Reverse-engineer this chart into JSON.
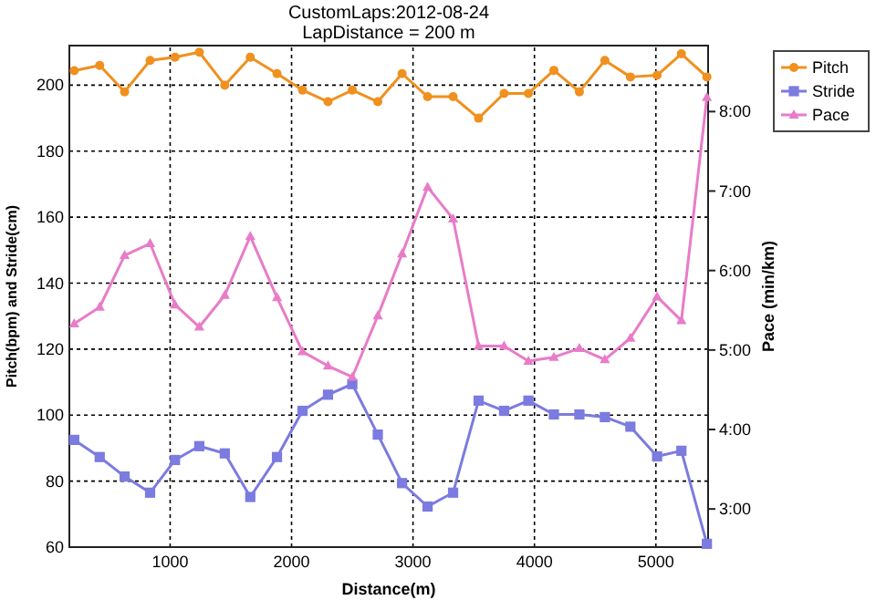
{
  "chart_data": {
    "type": "line",
    "title": "CustomLaps:2012-08-24",
    "subtitle": "LapDistance = 200 m",
    "xlabel": "Distance(m)",
    "ylabel": "Pitch(bpm) and Stride(cm)",
    "y2label": "Pace (min/km)",
    "x": [
      210,
      420,
      625,
      835,
      1040,
      1240,
      1450,
      1660,
      1880,
      2090,
      2300,
      2500,
      2710,
      2910,
      3120,
      3330,
      3540,
      3750,
      3950,
      4160,
      4370,
      4580,
      4790,
      5010,
      5210,
      5420
    ],
    "xlim": [
      170,
      5430
    ],
    "xticks": [
      1000,
      2000,
      3000,
      4000,
      5000
    ],
    "ylim": [
      60,
      212
    ],
    "yticks": [
      60,
      80,
      100,
      120,
      140,
      160,
      180,
      200
    ],
    "y2lim": [
      2.52,
      8.83
    ],
    "y2ticks": [
      {
        "value": 3,
        "label": "3:00"
      },
      {
        "value": 4,
        "label": "4:00"
      },
      {
        "value": 5,
        "label": "5:00"
      },
      {
        "value": 6,
        "label": "6:00"
      },
      {
        "value": 7,
        "label": "7:00"
      },
      {
        "value": 8,
        "label": "8:00"
      }
    ],
    "grid": true,
    "legend": "top right",
    "line_style": "solid",
    "series": [
      {
        "name": "Pitch",
        "color": "#f0901e",
        "marker": "circle",
        "values": [
          204.4,
          206,
          198,
          207.5,
          208.5,
          210,
          200,
          208.5,
          203.5,
          198.5,
          195,
          198.5,
          195,
          203.5,
          196.5,
          196.5,
          190,
          197.5,
          197.5,
          204.5,
          198,
          207.5,
          202.5,
          203,
          209.5,
          202.5
        ]
      },
      {
        "name": "Stride",
        "color": "#7b7be0",
        "marker": "square",
        "values": [
          92.5,
          87.3,
          81.4,
          76.5,
          86.4,
          90.6,
          88.4,
          75.2,
          87.3,
          101.3,
          106.2,
          109.4,
          94.1,
          79.4,
          72.3,
          76.5,
          104.4,
          101.3,
          104.4,
          100.2,
          100.2,
          99.4,
          96.5,
          87.5,
          89.2,
          61
        ]
      },
      {
        "name": "Pace",
        "color": "#e87cc8",
        "marker": "triangle",
        "axis": "y2",
        "values": [
          5.33,
          5.54,
          6.19,
          6.34,
          5.57,
          5.29,
          5.69,
          6.43,
          5.66,
          4.98,
          4.8,
          4.66,
          5.43,
          6.21,
          7.05,
          6.65,
          5.05,
          5.05,
          4.86,
          4.91,
          5.02,
          4.88,
          5.15,
          5.67,
          5.37,
          8.18
        ]
      }
    ]
  }
}
